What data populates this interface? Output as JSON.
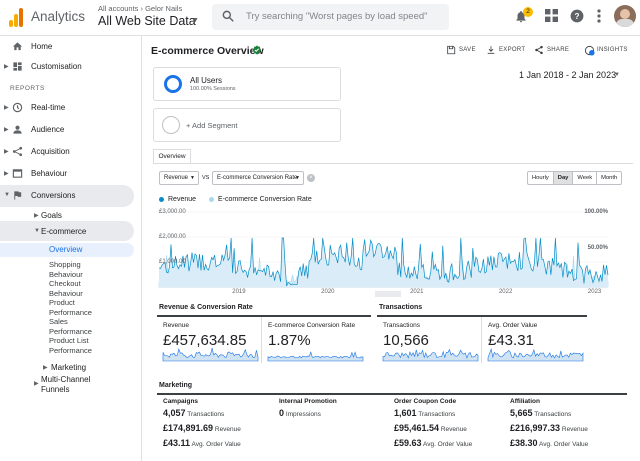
{
  "header": {
    "app_title": "Analytics",
    "account_crumb": "All accounts › Gelor Nails",
    "view_name": "All Web Site Data",
    "search_placeholder": "Try searching \"Worst pages by load speed\"",
    "notification_count": "2",
    "icons": [
      "analytics-logo",
      "search-icon",
      "bell-icon",
      "apps-grid-icon",
      "help-icon",
      "more-vert-icon",
      "avatar"
    ]
  },
  "sidebar": {
    "home": "Home",
    "customisation": "Customisation",
    "reports_heading": "REPORTS",
    "realtime": "Real-time",
    "audience": "Audience",
    "acquisition": "Acquisition",
    "behaviour": "Behaviour",
    "conversions": "Conversions",
    "goals": "Goals",
    "ecommerce": "E-commerce",
    "overview": "Overview",
    "sub_items": [
      "Shopping Behaviour",
      "Checkout Behaviour",
      "Product Performance",
      "Sales Performance",
      "Product List Performance"
    ],
    "marketing": "Marketing",
    "multichannel": "Multi-Channel Funnels"
  },
  "page": {
    "title": "E-commerce Overview",
    "actions": {
      "save": "SAVE",
      "export": "EXPORT",
      "share": "SHARE",
      "insights": "INSIGHTS"
    },
    "insights_badge": "2",
    "date_range": "1 Jan 2018 - 2 Jan 2023",
    "segment_name": "All Users",
    "segment_sub": "100.00% Sessions",
    "add_segment": "+ Add Segment",
    "tab": "Overview",
    "metric1": "Revenue",
    "vs": "VS",
    "metric2": "E-commerce Conversion Rate",
    "time_buttons": [
      "Hourly",
      "Day",
      "Week",
      "Month"
    ],
    "time_selected": "Day"
  },
  "chart_data": {
    "type": "line",
    "series": [
      {
        "name": "Revenue",
        "axis": "left"
      },
      {
        "name": "E-commerce Conversion Rate",
        "axis": "right"
      }
    ],
    "y_left_ticks": [
      "£3,000.00",
      "£2,000.00",
      "£1,000.00"
    ],
    "y_right_ticks": [
      "100.00%",
      "50.00%"
    ],
    "x_ticks": [
      "2019",
      "2020",
      "2021",
      "2022",
      "2023"
    ],
    "colors": {
      "revenue": "#058dc7",
      "conversion": "#a8d8f0"
    }
  },
  "rev_conv": {
    "heading": "Revenue & Conversion Rate",
    "revenue_label": "Revenue",
    "revenue_value": "£457,634.85",
    "conv_label": "E-commerce Conversion Rate",
    "conv_value": "1.87%"
  },
  "transactions": {
    "heading": "Transactions",
    "tx_label": "Transactions",
    "tx_value": "10,566",
    "aov_label": "Avg. Order Value",
    "aov_value": "£43.31"
  },
  "marketing": {
    "heading": "Marketing",
    "campaigns": {
      "title": "Campaigns",
      "count": "4,057",
      "count_label": "Transactions",
      "revenue": "£174,891.69",
      "revenue_label": "Revenue",
      "aov": "£43.11",
      "aov_label": "Avg. Order Value"
    },
    "internal": {
      "title": "Internal Promotion",
      "count": "0",
      "count_label": "Impressions"
    },
    "coupon": {
      "title": "Order Coupon Code",
      "count": "1,601",
      "count_label": "Transactions",
      "revenue": "£95,461.54",
      "revenue_label": "Revenue",
      "aov": "£59.63",
      "aov_label": "Avg. Order Value"
    },
    "affiliation": {
      "title": "Affiliation",
      "count": "5,665",
      "count_label": "Transactions",
      "revenue": "£216,997.33",
      "revenue_label": "Revenue",
      "aov": "£38.30",
      "aov_label": "Avg. Order Value"
    }
  }
}
